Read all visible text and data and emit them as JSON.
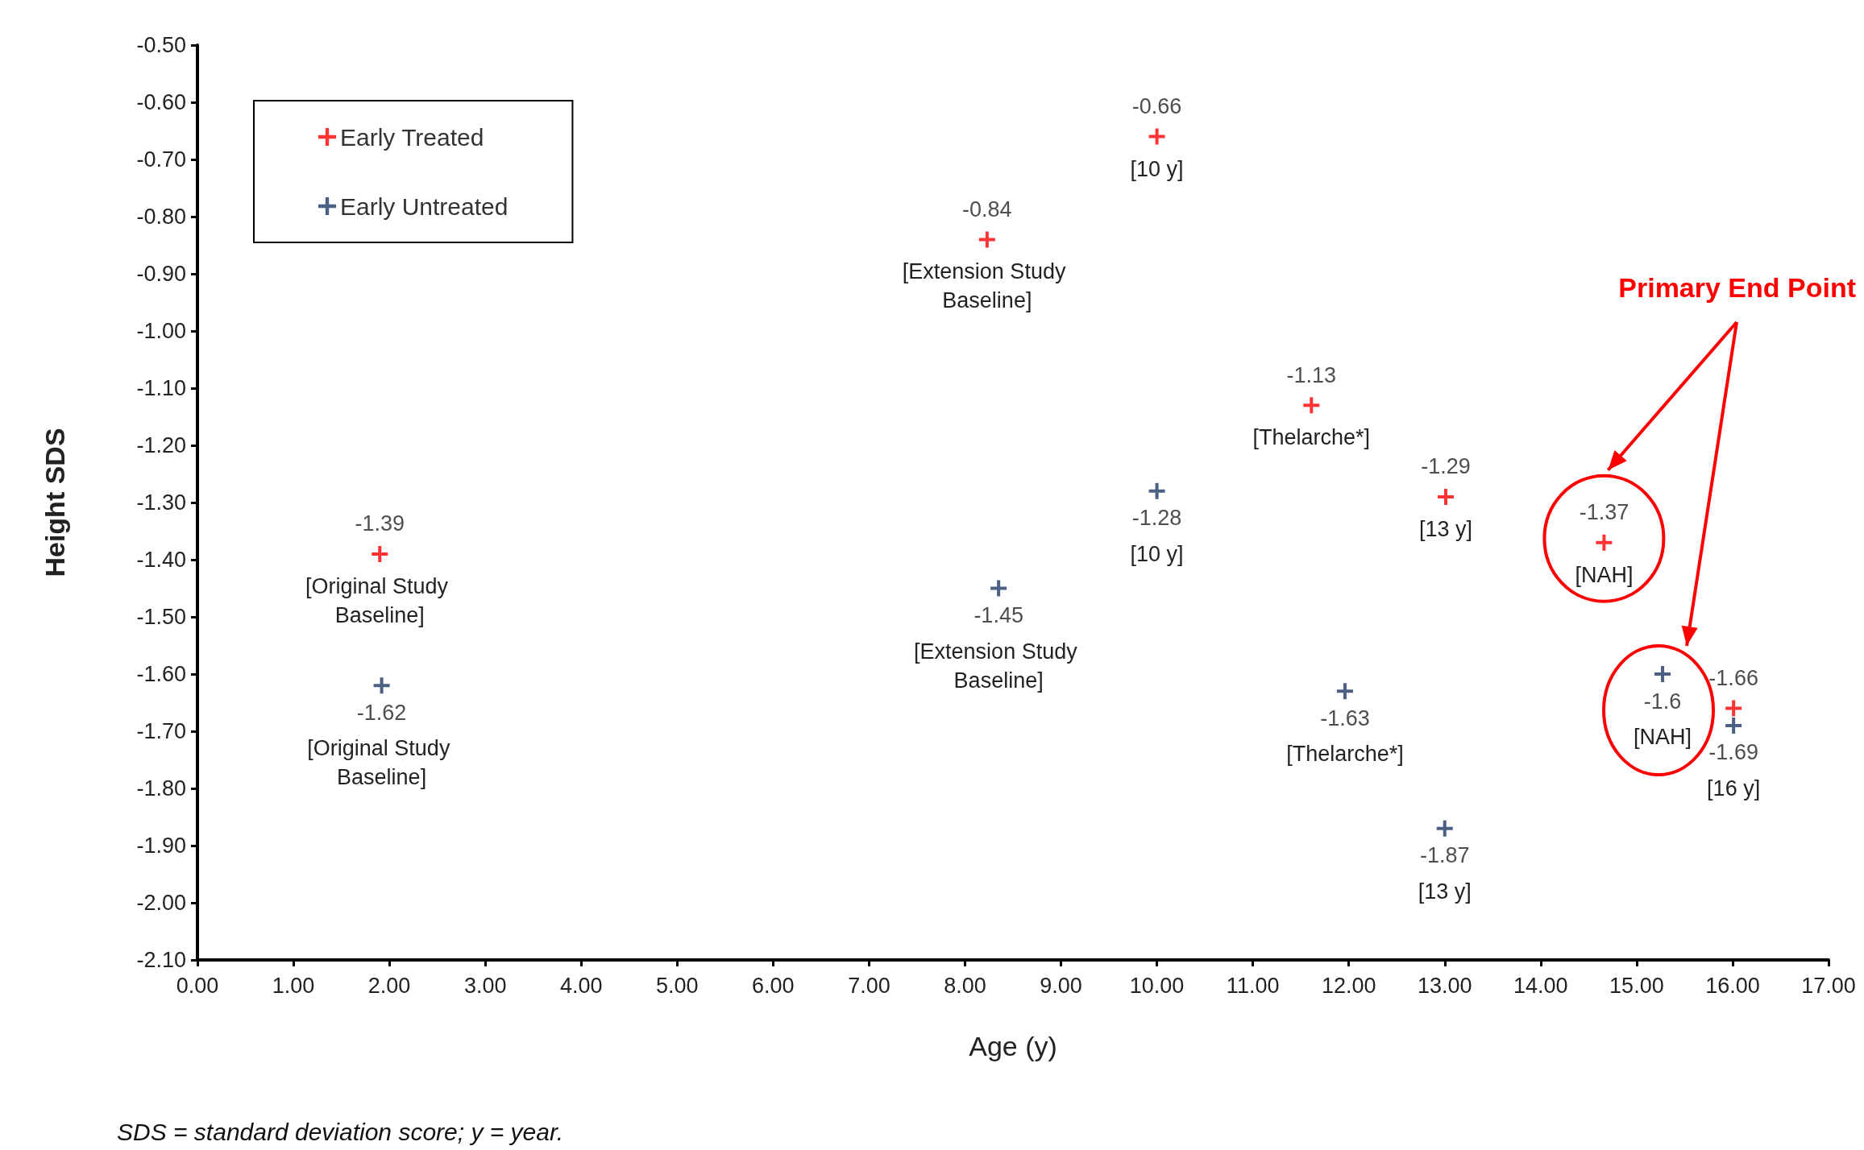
{
  "chart_data": {
    "type": "scatter",
    "xlabel": "Age (y)",
    "ylabel": "Height SDS",
    "series": [
      {
        "name": "Early Treated",
        "color": "#ff0000",
        "x": [
          1.9,
          8.23,
          10.0,
          11.61,
          13.01,
          14.66,
          16.01
        ],
        "values": [
          -1.39,
          -0.84,
          -0.66,
          -1.13,
          -1.29,
          -1.37,
          -1.66
        ],
        "value_labels": [
          "-1.39",
          "-0.84",
          "-0.66",
          "-1.13",
          "-1.29",
          "-1.37",
          "-1.66"
        ]
      },
      {
        "name": "Early Untreated",
        "color": "#1f3864",
        "x": [
          1.92,
          8.35,
          10.0,
          11.96,
          13.0,
          15.27,
          16.01
        ],
        "values": [
          -1.62,
          -1.45,
          -1.28,
          -1.63,
          -1.87,
          -1.6,
          -1.69
        ],
        "value_labels": [
          "-1.62",
          "-1.45",
          "-1.28",
          "-1.63",
          "-1.87",
          "-1.6",
          "-1.69"
        ]
      }
    ],
    "xlim": [
      0,
      17
    ],
    "xticks": [
      {
        "value": 0,
        "label": "0.00"
      },
      {
        "value": 1,
        "label": "1.00"
      },
      {
        "value": 2,
        "label": "2.00"
      },
      {
        "value": 3,
        "label": "3.00"
      },
      {
        "value": 4,
        "label": "4.00"
      },
      {
        "value": 5,
        "label": "5.00"
      },
      {
        "value": 6,
        "label": "6.00"
      },
      {
        "value": 7,
        "label": "7.00"
      },
      {
        "value": 8,
        "label": "8.00"
      },
      {
        "value": 9,
        "label": "9.00"
      },
      {
        "value": 10,
        "label": "10.00"
      },
      {
        "value": 11,
        "label": "11.00"
      },
      {
        "value": 12,
        "label": "12.00"
      },
      {
        "value": 13,
        "label": "13.00"
      },
      {
        "value": 14,
        "label": "14.00"
      },
      {
        "value": 15,
        "label": "15.00"
      },
      {
        "value": 16,
        "label": "16.00"
      },
      {
        "value": 17,
        "label": "17.00"
      }
    ],
    "ylim": [
      -2.1,
      -0.5
    ],
    "yticks": [
      {
        "value": -2.1,
        "label": "-2.10"
      },
      {
        "value": -2.0,
        "label": "-2.00"
      },
      {
        "value": -1.9,
        "label": "-1.90"
      },
      {
        "value": -1.8,
        "label": "-1.80"
      },
      {
        "value": -1.7,
        "label": "-1.70"
      },
      {
        "value": -1.6,
        "label": "-1.60"
      },
      {
        "value": -1.5,
        "label": "-1.50"
      },
      {
        "value": -1.4,
        "label": "-1.40"
      },
      {
        "value": -1.3,
        "label": "-1.30"
      },
      {
        "value": -1.2,
        "label": "-1.20"
      },
      {
        "value": -1.1,
        "label": "-1.10"
      },
      {
        "value": -1.0,
        "label": "-1.00"
      },
      {
        "value": -0.9,
        "label": "-0.90"
      },
      {
        "value": -0.8,
        "label": "-0.80"
      },
      {
        "value": -0.7,
        "label": "-0.70"
      },
      {
        "value": -0.6,
        "label": "-0.60"
      },
      {
        "value": -0.5,
        "label": "-0.50"
      }
    ],
    "marker": "cross",
    "grid": false,
    "legend": "top left",
    "annotations": [
      "Primary End Point",
      "SDS = standard deviation score; y = year.",
      {
        "text": "[Original Study Baseline]",
        "x": 1.9,
        "y": -1.39
      },
      {
        "text": "[Extension Study Baseline]",
        "x": 8.23,
        "y": -0.84
      },
      {
        "text": "[10 y]",
        "x": 10.0,
        "y": -0.66
      },
      {
        "text": "[Thelarche*]",
        "x": 11.61,
        "y": -1.13
      },
      {
        "text": "[13 y]",
        "x": 13.01,
        "y": -1.29
      },
      {
        "text": "[NAH]",
        "x": 14.66,
        "y": -1.37
      },
      {
        "text": "[Original Study Baseline]",
        "x": 1.92,
        "y": -1.62
      },
      {
        "text": "[Extension Study Baseline]",
        "x": 8.35,
        "y": -1.45
      },
      {
        "text": "[10 y]",
        "x": 10.0,
        "y": -1.28
      },
      {
        "text": "[Thelarche*]",
        "x": 11.96,
        "y": -1.63
      },
      {
        "text": "[13 y]",
        "x": 13.0,
        "y": -1.87
      },
      {
        "text": "[NAH]",
        "x": 15.27,
        "y": -1.6
      },
      {
        "text": "[16 y]",
        "x": 16.01,
        "y": -1.69
      }
    ]
  }
}
